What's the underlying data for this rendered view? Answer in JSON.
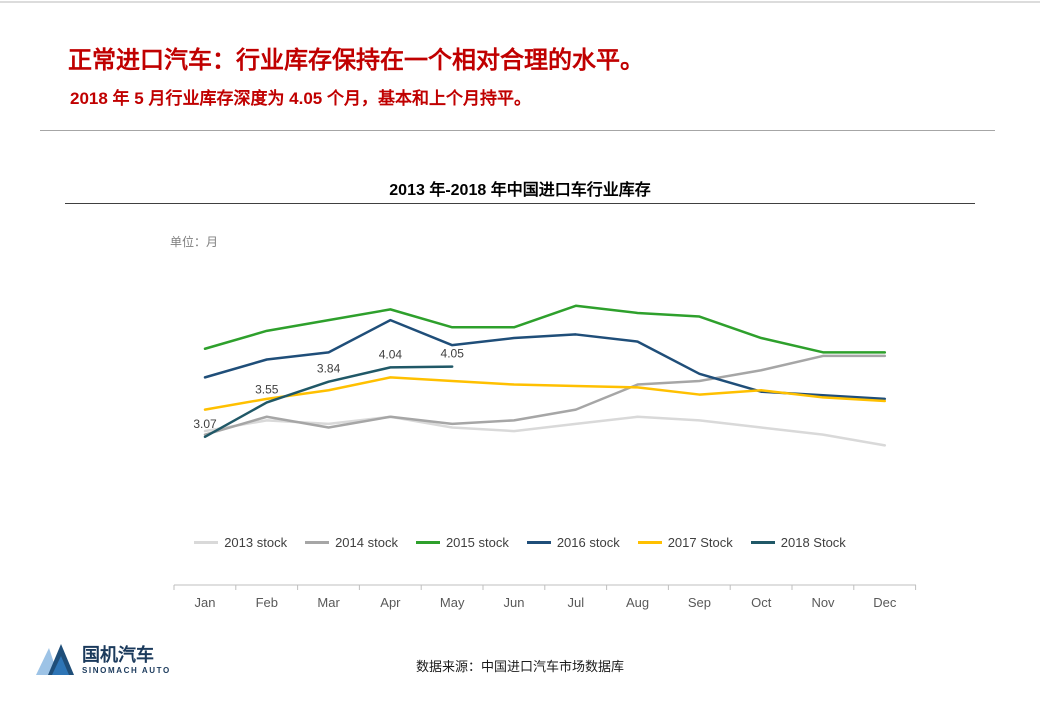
{
  "header": {
    "title": "正常进口汽车：行业库存保持在一个相对合理的水平。",
    "subtitle": "2018 年 5 月行业库存深度为 4.05 个月，基本和上个月持平。"
  },
  "chart_data": {
    "type": "line",
    "title": "2013 年-2018 年中国进口车行业库存",
    "unit_label": "单位：月",
    "categories": [
      "Jan",
      "Feb",
      "Mar",
      "Apr",
      "May",
      "Jun",
      "Jul",
      "Aug",
      "Sep",
      "Oct",
      "Nov",
      "Dec"
    ],
    "ylim": [
      1.0,
      5.4
    ],
    "grid": false,
    "legend_position": "bottom",
    "series": [
      {
        "name": "2013 stock",
        "color": "#D9D9D9",
        "values": [
          3.15,
          3.3,
          3.25,
          3.35,
          3.2,
          3.15,
          3.25,
          3.35,
          3.3,
          3.2,
          3.1,
          2.95
        ]
      },
      {
        "name": "2014 stock",
        "color": "#A6A6A6",
        "values": [
          3.1,
          3.35,
          3.2,
          3.35,
          3.25,
          3.3,
          3.45,
          3.8,
          3.85,
          4.0,
          4.2,
          4.2
        ]
      },
      {
        "name": "2015 stock",
        "color": "#2EA02C",
        "values": [
          4.3,
          4.55,
          4.7,
          4.85,
          4.6,
          4.6,
          4.9,
          4.8,
          4.75,
          4.45,
          4.25,
          4.25
        ]
      },
      {
        "name": "2016 stock",
        "color": "#1F4E79",
        "values": [
          3.9,
          4.15,
          4.25,
          4.7,
          4.35,
          4.45,
          4.5,
          4.4,
          3.95,
          3.7,
          3.65,
          3.6
        ]
      },
      {
        "name": "2017 Stock",
        "color": "#FFC000",
        "values": [
          3.45,
          3.6,
          3.72,
          3.9,
          3.85,
          3.8,
          3.78,
          3.76,
          3.66,
          3.72,
          3.62,
          3.57
        ]
      },
      {
        "name": "2018 Stock",
        "color": "#205867",
        "values": [
          3.07,
          3.55,
          3.84,
          4.04,
          4.05,
          null,
          null,
          null,
          null,
          null,
          null,
          null
        ],
        "show_labels": true
      }
    ],
    "data_labels": [
      "3.07",
      "3.55",
      "3.84",
      "4.04",
      "4.05"
    ]
  },
  "footer": {
    "source": "数据来源：中国进口汽车市场数据库",
    "logo_cn": "国机汽车",
    "logo_en": "SINOMACH AUTO"
  },
  "colors": {
    "accent_red": "#C00000",
    "logo_blue": "#2E75B6",
    "logo_navy": "#1F4E79"
  }
}
